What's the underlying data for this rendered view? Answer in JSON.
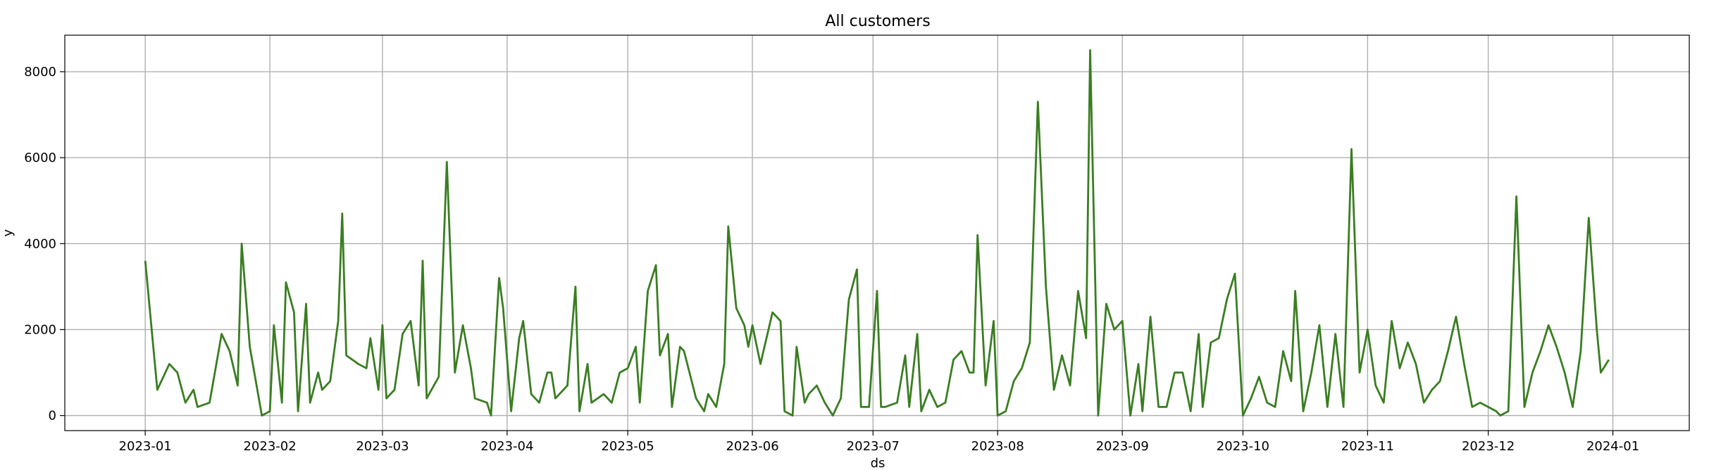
{
  "chart_data": {
    "type": "line",
    "title": "All customers",
    "xlabel": "ds",
    "ylabel": "y",
    "x_start": "2023-01-01",
    "x_end": "2024-01-01",
    "xlim": [
      "2022-12-12",
      "2024-01-20"
    ],
    "ylim": [
      -350,
      8850
    ],
    "x_tick_labels": [
      "2023-01",
      "2023-02",
      "2023-03",
      "2023-04",
      "2023-05",
      "2023-06",
      "2023-07",
      "2023-08",
      "2023-09",
      "2023-10",
      "2023-11",
      "2023-12",
      "2024-01"
    ],
    "x_tick_dates": [
      "2023-01-01",
      "2023-02-01",
      "2023-03-01",
      "2023-04-01",
      "2023-05-01",
      "2023-06-01",
      "2023-07-01",
      "2023-08-01",
      "2023-09-01",
      "2023-10-01",
      "2023-11-01",
      "2023-12-01",
      "2024-01-01"
    ],
    "y_ticks": [
      0,
      2000,
      4000,
      6000,
      8000
    ],
    "grid": true,
    "series": [
      {
        "color": "#3a7d22",
        "points": [
          [
            "2023-01-01",
            3600
          ],
          [
            "2023-01-04",
            600
          ],
          [
            "2023-01-07",
            1200
          ],
          [
            "2023-01-09",
            1000
          ],
          [
            "2023-01-11",
            300
          ],
          [
            "2023-01-13",
            600
          ],
          [
            "2023-01-14",
            200
          ],
          [
            "2023-01-17",
            300
          ],
          [
            "2023-01-20",
            1900
          ],
          [
            "2023-01-22",
            1500
          ],
          [
            "2023-01-24",
            700
          ],
          [
            "2023-01-25",
            4000
          ],
          [
            "2023-01-27",
            1600
          ],
          [
            "2023-01-30",
            0
          ],
          [
            "2023-02-01",
            100
          ],
          [
            "2023-02-02",
            2100
          ],
          [
            "2023-02-04",
            300
          ],
          [
            "2023-02-05",
            3100
          ],
          [
            "2023-02-07",
            2400
          ],
          [
            "2023-02-08",
            100
          ],
          [
            "2023-02-10",
            2600
          ],
          [
            "2023-02-11",
            300
          ],
          [
            "2023-02-13",
            1000
          ],
          [
            "2023-02-14",
            600
          ],
          [
            "2023-02-16",
            800
          ],
          [
            "2023-02-18",
            2200
          ],
          [
            "2023-02-19",
            4700
          ],
          [
            "2023-02-20",
            1400
          ],
          [
            "2023-02-23",
            1200
          ],
          [
            "2023-02-25",
            1100
          ],
          [
            "2023-02-26",
            1800
          ],
          [
            "2023-02-28",
            600
          ],
          [
            "2023-03-01",
            2100
          ],
          [
            "2023-03-02",
            400
          ],
          [
            "2023-03-04",
            600
          ],
          [
            "2023-03-06",
            1900
          ],
          [
            "2023-03-08",
            2200
          ],
          [
            "2023-03-10",
            700
          ],
          [
            "2023-03-11",
            3600
          ],
          [
            "2023-03-12",
            400
          ],
          [
            "2023-03-15",
            900
          ],
          [
            "2023-03-17",
            5900
          ],
          [
            "2023-03-19",
            1000
          ],
          [
            "2023-03-21",
            2100
          ],
          [
            "2023-03-23",
            1100
          ],
          [
            "2023-03-24",
            400
          ],
          [
            "2023-03-27",
            300
          ],
          [
            "2023-03-28",
            0
          ],
          [
            "2023-03-30",
            3200
          ],
          [
            "2023-03-31",
            2500
          ],
          [
            "2023-04-02",
            100
          ],
          [
            "2023-04-04",
            1800
          ],
          [
            "2023-04-05",
            2200
          ],
          [
            "2023-04-07",
            500
          ],
          [
            "2023-04-09",
            300
          ],
          [
            "2023-04-11",
            1000
          ],
          [
            "2023-04-12",
            1000
          ],
          [
            "2023-04-13",
            400
          ],
          [
            "2023-04-16",
            700
          ],
          [
            "2023-04-18",
            3000
          ],
          [
            "2023-04-19",
            100
          ],
          [
            "2023-04-21",
            1200
          ],
          [
            "2023-04-22",
            300
          ],
          [
            "2023-04-25",
            500
          ],
          [
            "2023-04-27",
            300
          ],
          [
            "2023-04-29",
            1000
          ],
          [
            "2023-05-01",
            1100
          ],
          [
            "2023-05-03",
            1600
          ],
          [
            "2023-05-04",
            300
          ],
          [
            "2023-05-06",
            2900
          ],
          [
            "2023-05-08",
            3500
          ],
          [
            "2023-05-09",
            1400
          ],
          [
            "2023-05-11",
            1900
          ],
          [
            "2023-05-12",
            200
          ],
          [
            "2023-05-14",
            1600
          ],
          [
            "2023-05-15",
            1500
          ],
          [
            "2023-05-18",
            400
          ],
          [
            "2023-05-20",
            100
          ],
          [
            "2023-05-21",
            500
          ],
          [
            "2023-05-23",
            200
          ],
          [
            "2023-05-25",
            1200
          ],
          [
            "2023-05-26",
            4400
          ],
          [
            "2023-05-28",
            2500
          ],
          [
            "2023-05-30",
            2100
          ],
          [
            "2023-05-31",
            1600
          ],
          [
            "2023-06-01",
            2100
          ],
          [
            "2023-06-03",
            1200
          ],
          [
            "2023-06-06",
            2400
          ],
          [
            "2023-06-08",
            2200
          ],
          [
            "2023-06-09",
            100
          ],
          [
            "2023-06-11",
            0
          ],
          [
            "2023-06-12",
            1600
          ],
          [
            "2023-06-14",
            300
          ],
          [
            "2023-06-15",
            500
          ],
          [
            "2023-06-17",
            700
          ],
          [
            "2023-06-19",
            300
          ],
          [
            "2023-06-21",
            0
          ],
          [
            "2023-06-23",
            400
          ],
          [
            "2023-06-25",
            2700
          ],
          [
            "2023-06-27",
            3400
          ],
          [
            "2023-06-28",
            200
          ],
          [
            "2023-06-30",
            200
          ],
          [
            "2023-07-02",
            2900
          ],
          [
            "2023-07-03",
            200
          ],
          [
            "2023-07-04",
            200
          ],
          [
            "2023-07-07",
            300
          ],
          [
            "2023-07-09",
            1400
          ],
          [
            "2023-07-10",
            200
          ],
          [
            "2023-07-12",
            1900
          ],
          [
            "2023-07-13",
            100
          ],
          [
            "2023-07-15",
            600
          ],
          [
            "2023-07-17",
            200
          ],
          [
            "2023-07-19",
            300
          ],
          [
            "2023-07-21",
            1300
          ],
          [
            "2023-07-23",
            1500
          ],
          [
            "2023-07-25",
            1000
          ],
          [
            "2023-07-26",
            1000
          ],
          [
            "2023-07-27",
            4200
          ],
          [
            "2023-07-29",
            700
          ],
          [
            "2023-07-31",
            2200
          ],
          [
            "2023-08-01",
            0
          ],
          [
            "2023-08-03",
            100
          ],
          [
            "2023-08-05",
            800
          ],
          [
            "2023-08-07",
            1100
          ],
          [
            "2023-08-09",
            1700
          ],
          [
            "2023-08-11",
            7300
          ],
          [
            "2023-08-13",
            3000
          ],
          [
            "2023-08-15",
            600
          ],
          [
            "2023-08-17",
            1400
          ],
          [
            "2023-08-19",
            700
          ],
          [
            "2023-08-21",
            2900
          ],
          [
            "2023-08-23",
            1800
          ],
          [
            "2023-08-24",
            8500
          ],
          [
            "2023-08-26",
            0
          ],
          [
            "2023-08-28",
            2600
          ],
          [
            "2023-08-30",
            2000
          ],
          [
            "2023-09-01",
            2200
          ],
          [
            "2023-09-03",
            0
          ],
          [
            "2023-09-05",
            1200
          ],
          [
            "2023-09-06",
            100
          ],
          [
            "2023-09-08",
            2300
          ],
          [
            "2023-09-10",
            200
          ],
          [
            "2023-09-12",
            200
          ],
          [
            "2023-09-14",
            1000
          ],
          [
            "2023-09-16",
            1000
          ],
          [
            "2023-09-18",
            100
          ],
          [
            "2023-09-20",
            1900
          ],
          [
            "2023-09-21",
            200
          ],
          [
            "2023-09-23",
            1700
          ],
          [
            "2023-09-25",
            1800
          ],
          [
            "2023-09-27",
            2700
          ],
          [
            "2023-09-29",
            3300
          ],
          [
            "2023-10-01",
            0
          ],
          [
            "2023-10-03",
            400
          ],
          [
            "2023-10-05",
            900
          ],
          [
            "2023-10-07",
            300
          ],
          [
            "2023-10-09",
            200
          ],
          [
            "2023-10-11",
            1500
          ],
          [
            "2023-10-13",
            800
          ],
          [
            "2023-10-14",
            2900
          ],
          [
            "2023-10-16",
            100
          ],
          [
            "2023-10-18",
            1000
          ],
          [
            "2023-10-20",
            2100
          ],
          [
            "2023-10-22",
            200
          ],
          [
            "2023-10-24",
            1900
          ],
          [
            "2023-10-26",
            200
          ],
          [
            "2023-10-28",
            6200
          ],
          [
            "2023-10-30",
            1000
          ],
          [
            "2023-11-01",
            2000
          ],
          [
            "2023-11-03",
            700
          ],
          [
            "2023-11-05",
            300
          ],
          [
            "2023-11-07",
            2200
          ],
          [
            "2023-11-09",
            1100
          ],
          [
            "2023-11-11",
            1700
          ],
          [
            "2023-11-13",
            1200
          ],
          [
            "2023-11-15",
            300
          ],
          [
            "2023-11-17",
            600
          ],
          [
            "2023-11-19",
            800
          ],
          [
            "2023-11-21",
            1500
          ],
          [
            "2023-11-23",
            2300
          ],
          [
            "2023-11-25",
            1200
          ],
          [
            "2023-11-27",
            200
          ],
          [
            "2023-11-29",
            300
          ],
          [
            "2023-12-01",
            200
          ],
          [
            "2023-12-03",
            100
          ],
          [
            "2023-12-04",
            0
          ],
          [
            "2023-12-06",
            100
          ],
          [
            "2023-12-08",
            5100
          ],
          [
            "2023-12-10",
            200
          ],
          [
            "2023-12-12",
            1000
          ],
          [
            "2023-12-14",
            1500
          ],
          [
            "2023-12-16",
            2100
          ],
          [
            "2023-12-18",
            1600
          ],
          [
            "2023-12-20",
            1000
          ],
          [
            "2023-12-22",
            200
          ],
          [
            "2023-12-24",
            1500
          ],
          [
            "2023-12-26",
            4600
          ],
          [
            "2023-12-28",
            2000
          ],
          [
            "2023-12-29",
            1000
          ],
          [
            "2023-12-31",
            1300
          ]
        ]
      }
    ]
  }
}
